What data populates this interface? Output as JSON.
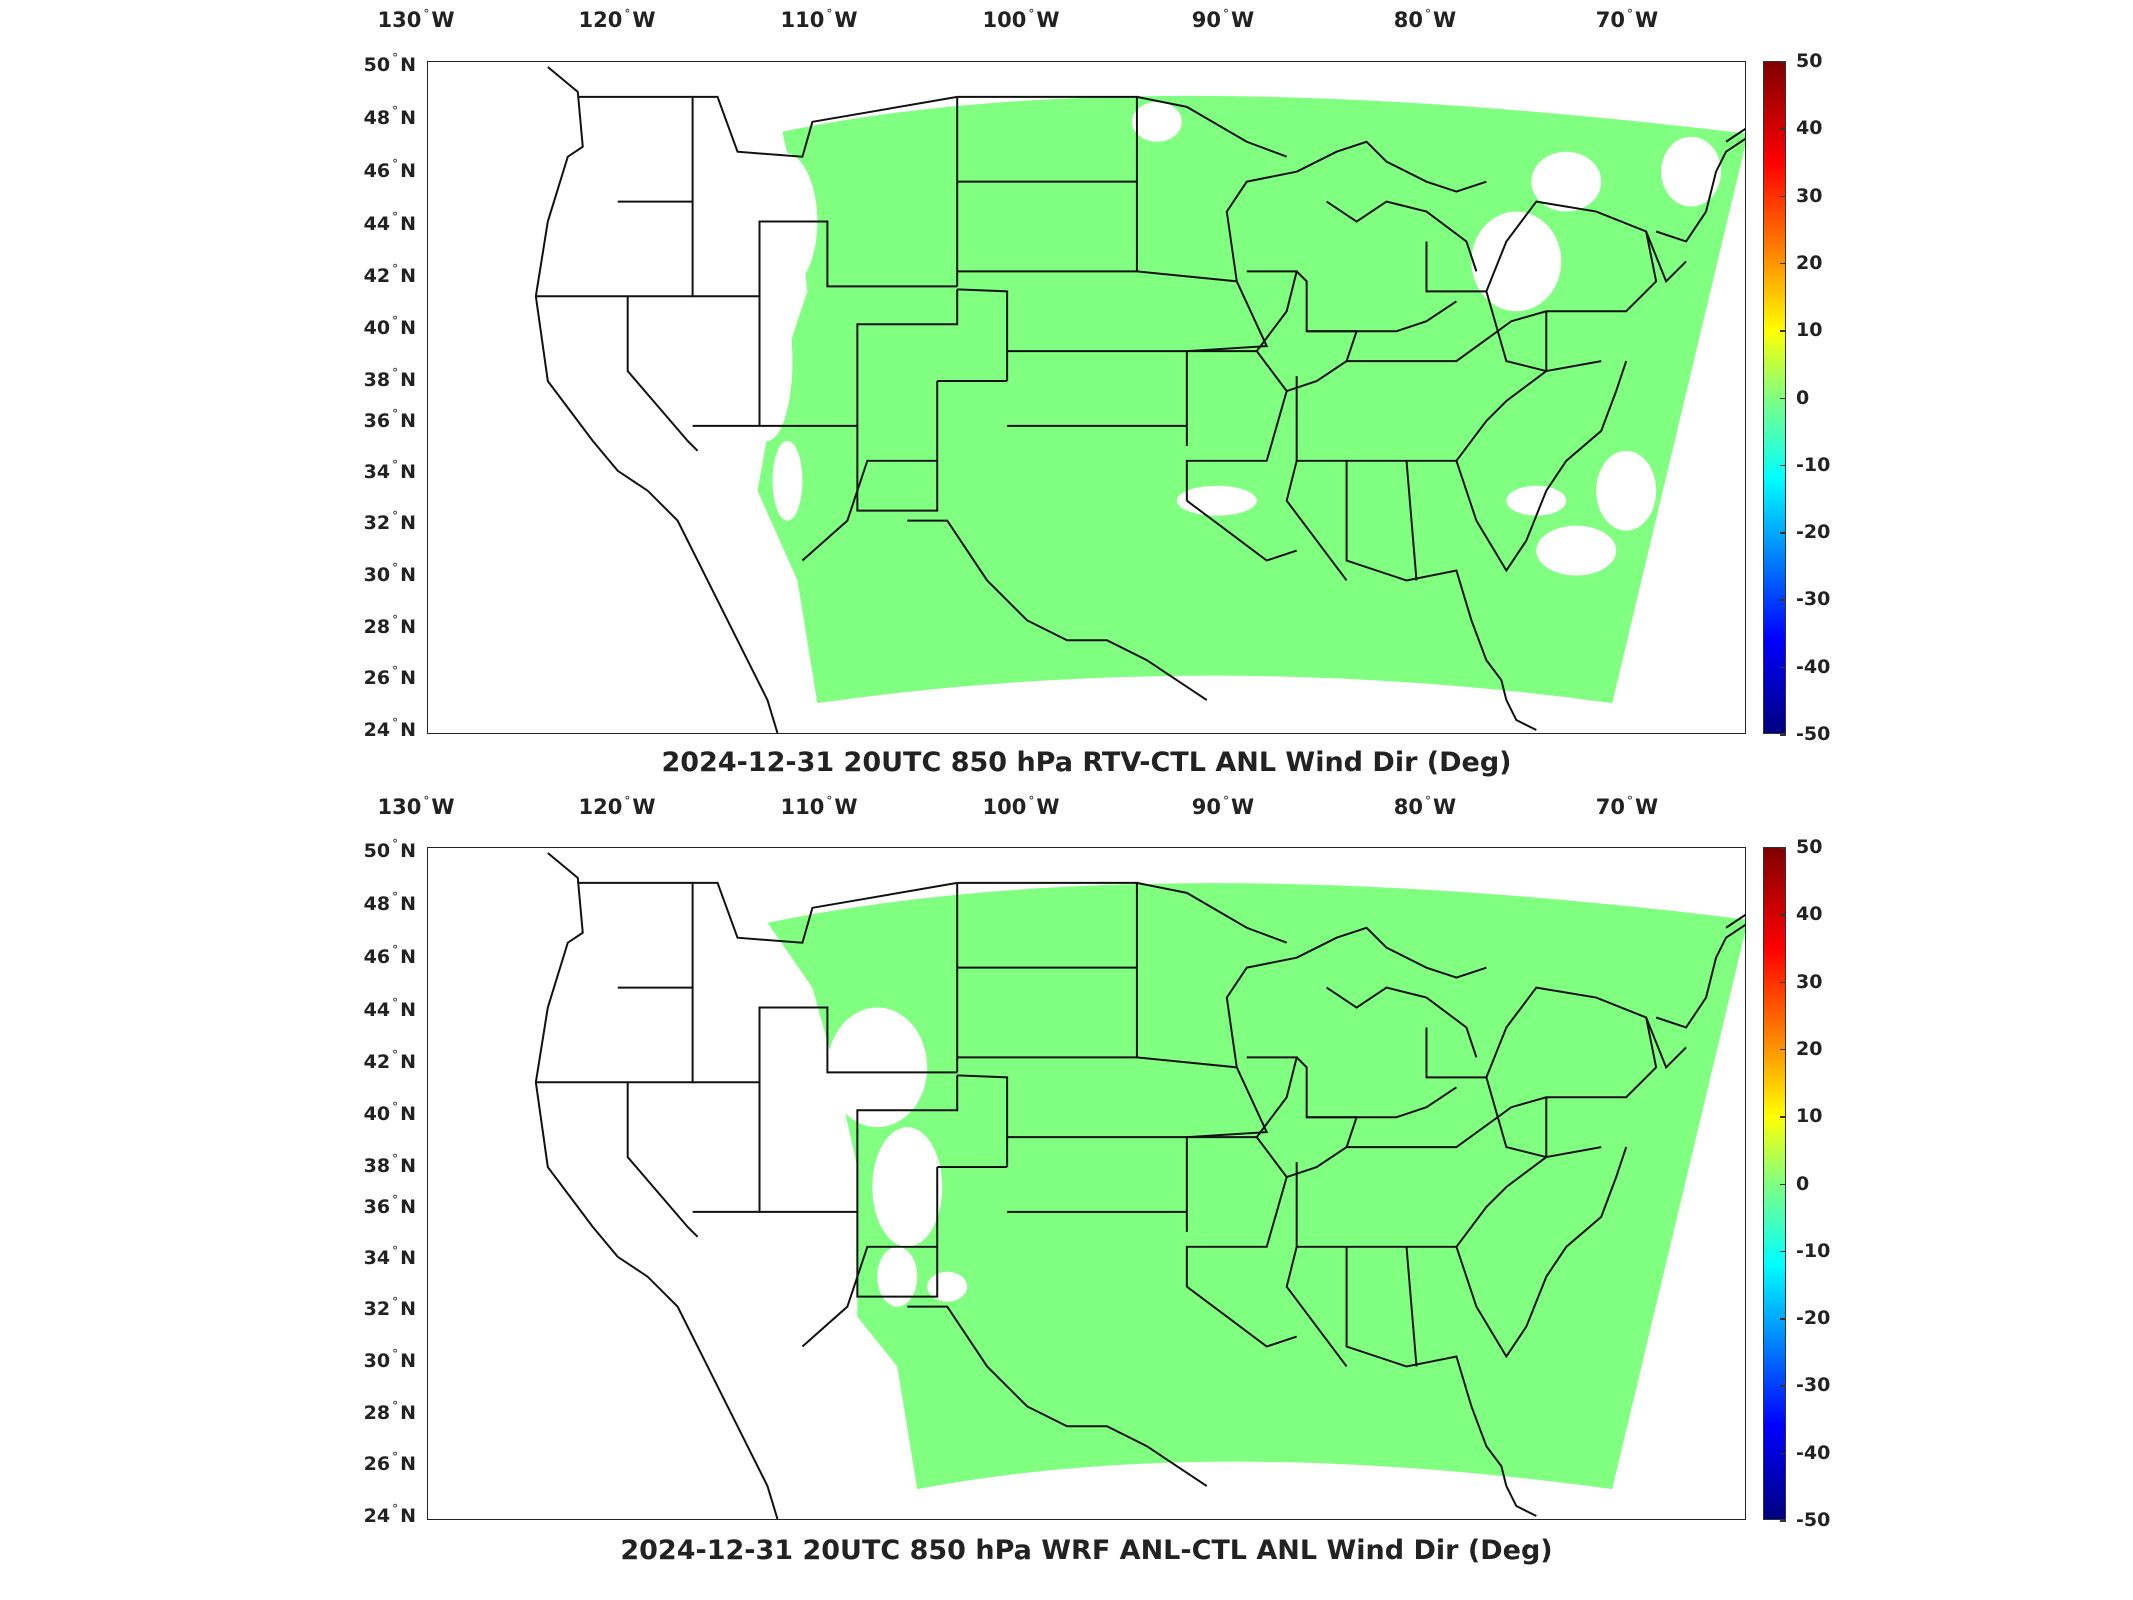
{
  "figure": {
    "panels": [
      {
        "title": "2024-12-31 20UTC 850 hPa RTV-CTL ANL Wind Dir (Deg)",
        "fill_color": "#80ff80"
      },
      {
        "title": "2024-12-31 20UTC 850 hPa WRF ANL-CTL ANL Wind Dir (Deg)",
        "fill_color": "#80ff80"
      }
    ],
    "lon_labels": [
      {
        "value": "130",
        "hemi": "W"
      },
      {
        "value": "120",
        "hemi": "W"
      },
      {
        "value": "110",
        "hemi": "W"
      },
      {
        "value": "100",
        "hemi": "W"
      },
      {
        "value": "90",
        "hemi": "W"
      },
      {
        "value": "80",
        "hemi": "W"
      },
      {
        "value": "70",
        "hemi": "W"
      }
    ],
    "lat_labels": [
      {
        "value": "50",
        "hemi": "N"
      },
      {
        "value": "48",
        "hemi": "N"
      },
      {
        "value": "46",
        "hemi": "N"
      },
      {
        "value": "44",
        "hemi": "N"
      },
      {
        "value": "42",
        "hemi": "N"
      },
      {
        "value": "40",
        "hemi": "N"
      },
      {
        "value": "38",
        "hemi": "N"
      },
      {
        "value": "36",
        "hemi": "N"
      },
      {
        "value": "34",
        "hemi": "N"
      },
      {
        "value": "32",
        "hemi": "N"
      },
      {
        "value": "30",
        "hemi": "N"
      },
      {
        "value": "28",
        "hemi": "N"
      },
      {
        "value": "26",
        "hemi": "N"
      },
      {
        "value": "24",
        "hemi": "N"
      }
    ],
    "colorbar": {
      "ticks": [
        "50",
        "40",
        "30",
        "20",
        "10",
        "0",
        "-10",
        "-20",
        "-30",
        "-40",
        "-50"
      ],
      "range": [
        -50,
        50
      ],
      "colormap": "jet"
    },
    "map_extent": {
      "lon": [
        -130,
        -65
      ],
      "lat": [
        24,
        50
      ]
    }
  }
}
